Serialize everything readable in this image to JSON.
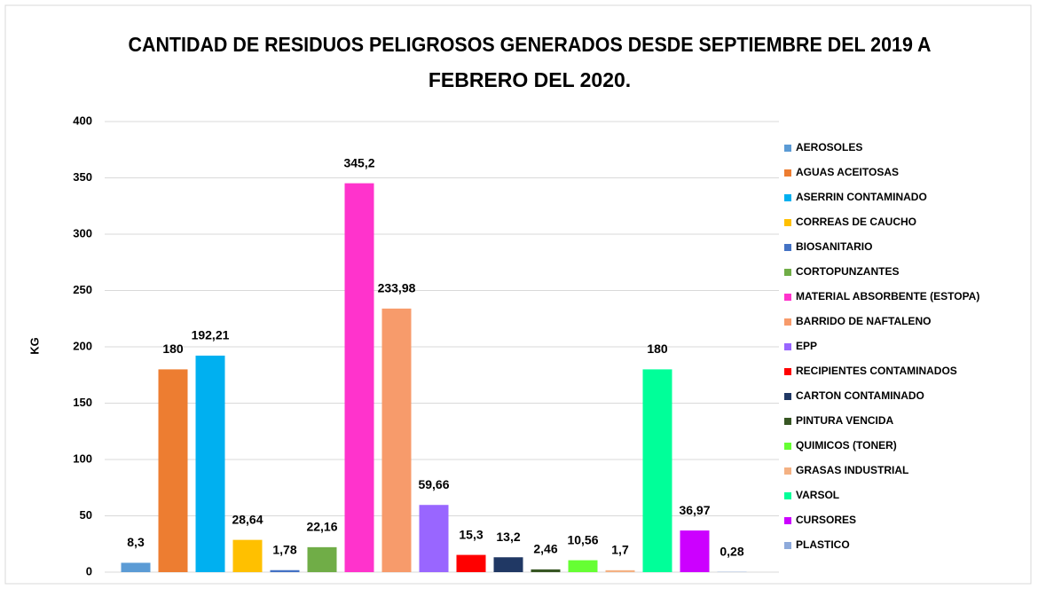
{
  "chart_data": {
    "type": "bar",
    "title": [
      "CANTIDAD DE RESIDUOS PELIGROSOS GENERADOS DESDE SEPTIEMBRE DEL 2019 A",
      "FEBRERO DEL 2020."
    ],
    "y_label": "KG",
    "ylim": [
      0,
      400
    ],
    "yticks": [
      0,
      50,
      100,
      150,
      200,
      250,
      300,
      350,
      400
    ],
    "grid": true,
    "legend": "right",
    "series": [
      {
        "name": "AEROSOLES",
        "color": "#5b9bd5",
        "values": [
          8.3
        ],
        "value_labels": [
          "8,3"
        ]
      },
      {
        "name": "AGUAS ACEITOSAS",
        "color": "#ed7d31",
        "values": [
          180
        ],
        "value_labels": [
          "180"
        ]
      },
      {
        "name": "ASERRIN CONTAMINADO",
        "color": "#00b0f0",
        "values": [
          192.21
        ],
        "value_labels": [
          "192,21"
        ]
      },
      {
        "name": "CORREAS DE CAUCHO",
        "color": "#ffc000",
        "values": [
          28.64
        ],
        "value_labels": [
          "28,64"
        ]
      },
      {
        "name": "BIOSANITARIO",
        "color": "#4472c4",
        "values": [
          1.78
        ],
        "value_labels": [
          "1,78"
        ]
      },
      {
        "name": "CORTOPUNZANTES",
        "color": "#70ad47",
        "values": [
          22.16
        ],
        "value_labels": [
          "22,16"
        ]
      },
      {
        "name": "MATERIAL ABSORBENTE (ESTOPA)",
        "color": "#ff33cc",
        "values": [
          345.2
        ],
        "value_labels": [
          "345,2"
        ]
      },
      {
        "name": "BARRIDO DE NAFTALENO",
        "color": "#f79b6b",
        "values": [
          233.98
        ],
        "value_labels": [
          "233,98"
        ]
      },
      {
        "name": "EPP",
        "color": "#9966ff",
        "values": [
          59.66
        ],
        "value_labels": [
          "59,66"
        ]
      },
      {
        "name": "RECIPIENTES CONTAMINADOS",
        "color": "#ff0000",
        "values": [
          15.3
        ],
        "value_labels": [
          "15,3"
        ]
      },
      {
        "name": "CARTON CONTAMINADO",
        "color": "#203864",
        "values": [
          13.2
        ],
        "value_labels": [
          "13,2"
        ]
      },
      {
        "name": "PINTURA VENCIDA",
        "color": "#375623",
        "values": [
          2.46
        ],
        "value_labels": [
          "2,46"
        ]
      },
      {
        "name": "QUIMICOS (TONER)",
        "color": "#66ff33",
        "values": [
          10.56
        ],
        "value_labels": [
          "10,56"
        ]
      },
      {
        "name": "GRASAS INDUSTRIAL",
        "color": "#f4b183",
        "values": [
          1.7
        ],
        "value_labels": [
          "1,7"
        ]
      },
      {
        "name": "VARSOL",
        "color": "#00ff99",
        "values": [
          180
        ],
        "value_labels": [
          "180"
        ]
      },
      {
        "name": "CURSORES",
        "color": "#cc00ff",
        "values": [
          36.97
        ],
        "value_labels": [
          "36,97"
        ]
      },
      {
        "name": "PLASTICO",
        "color": "#8eaadb",
        "values": [
          0.28
        ],
        "value_labels": [
          "0,28"
        ]
      }
    ]
  }
}
